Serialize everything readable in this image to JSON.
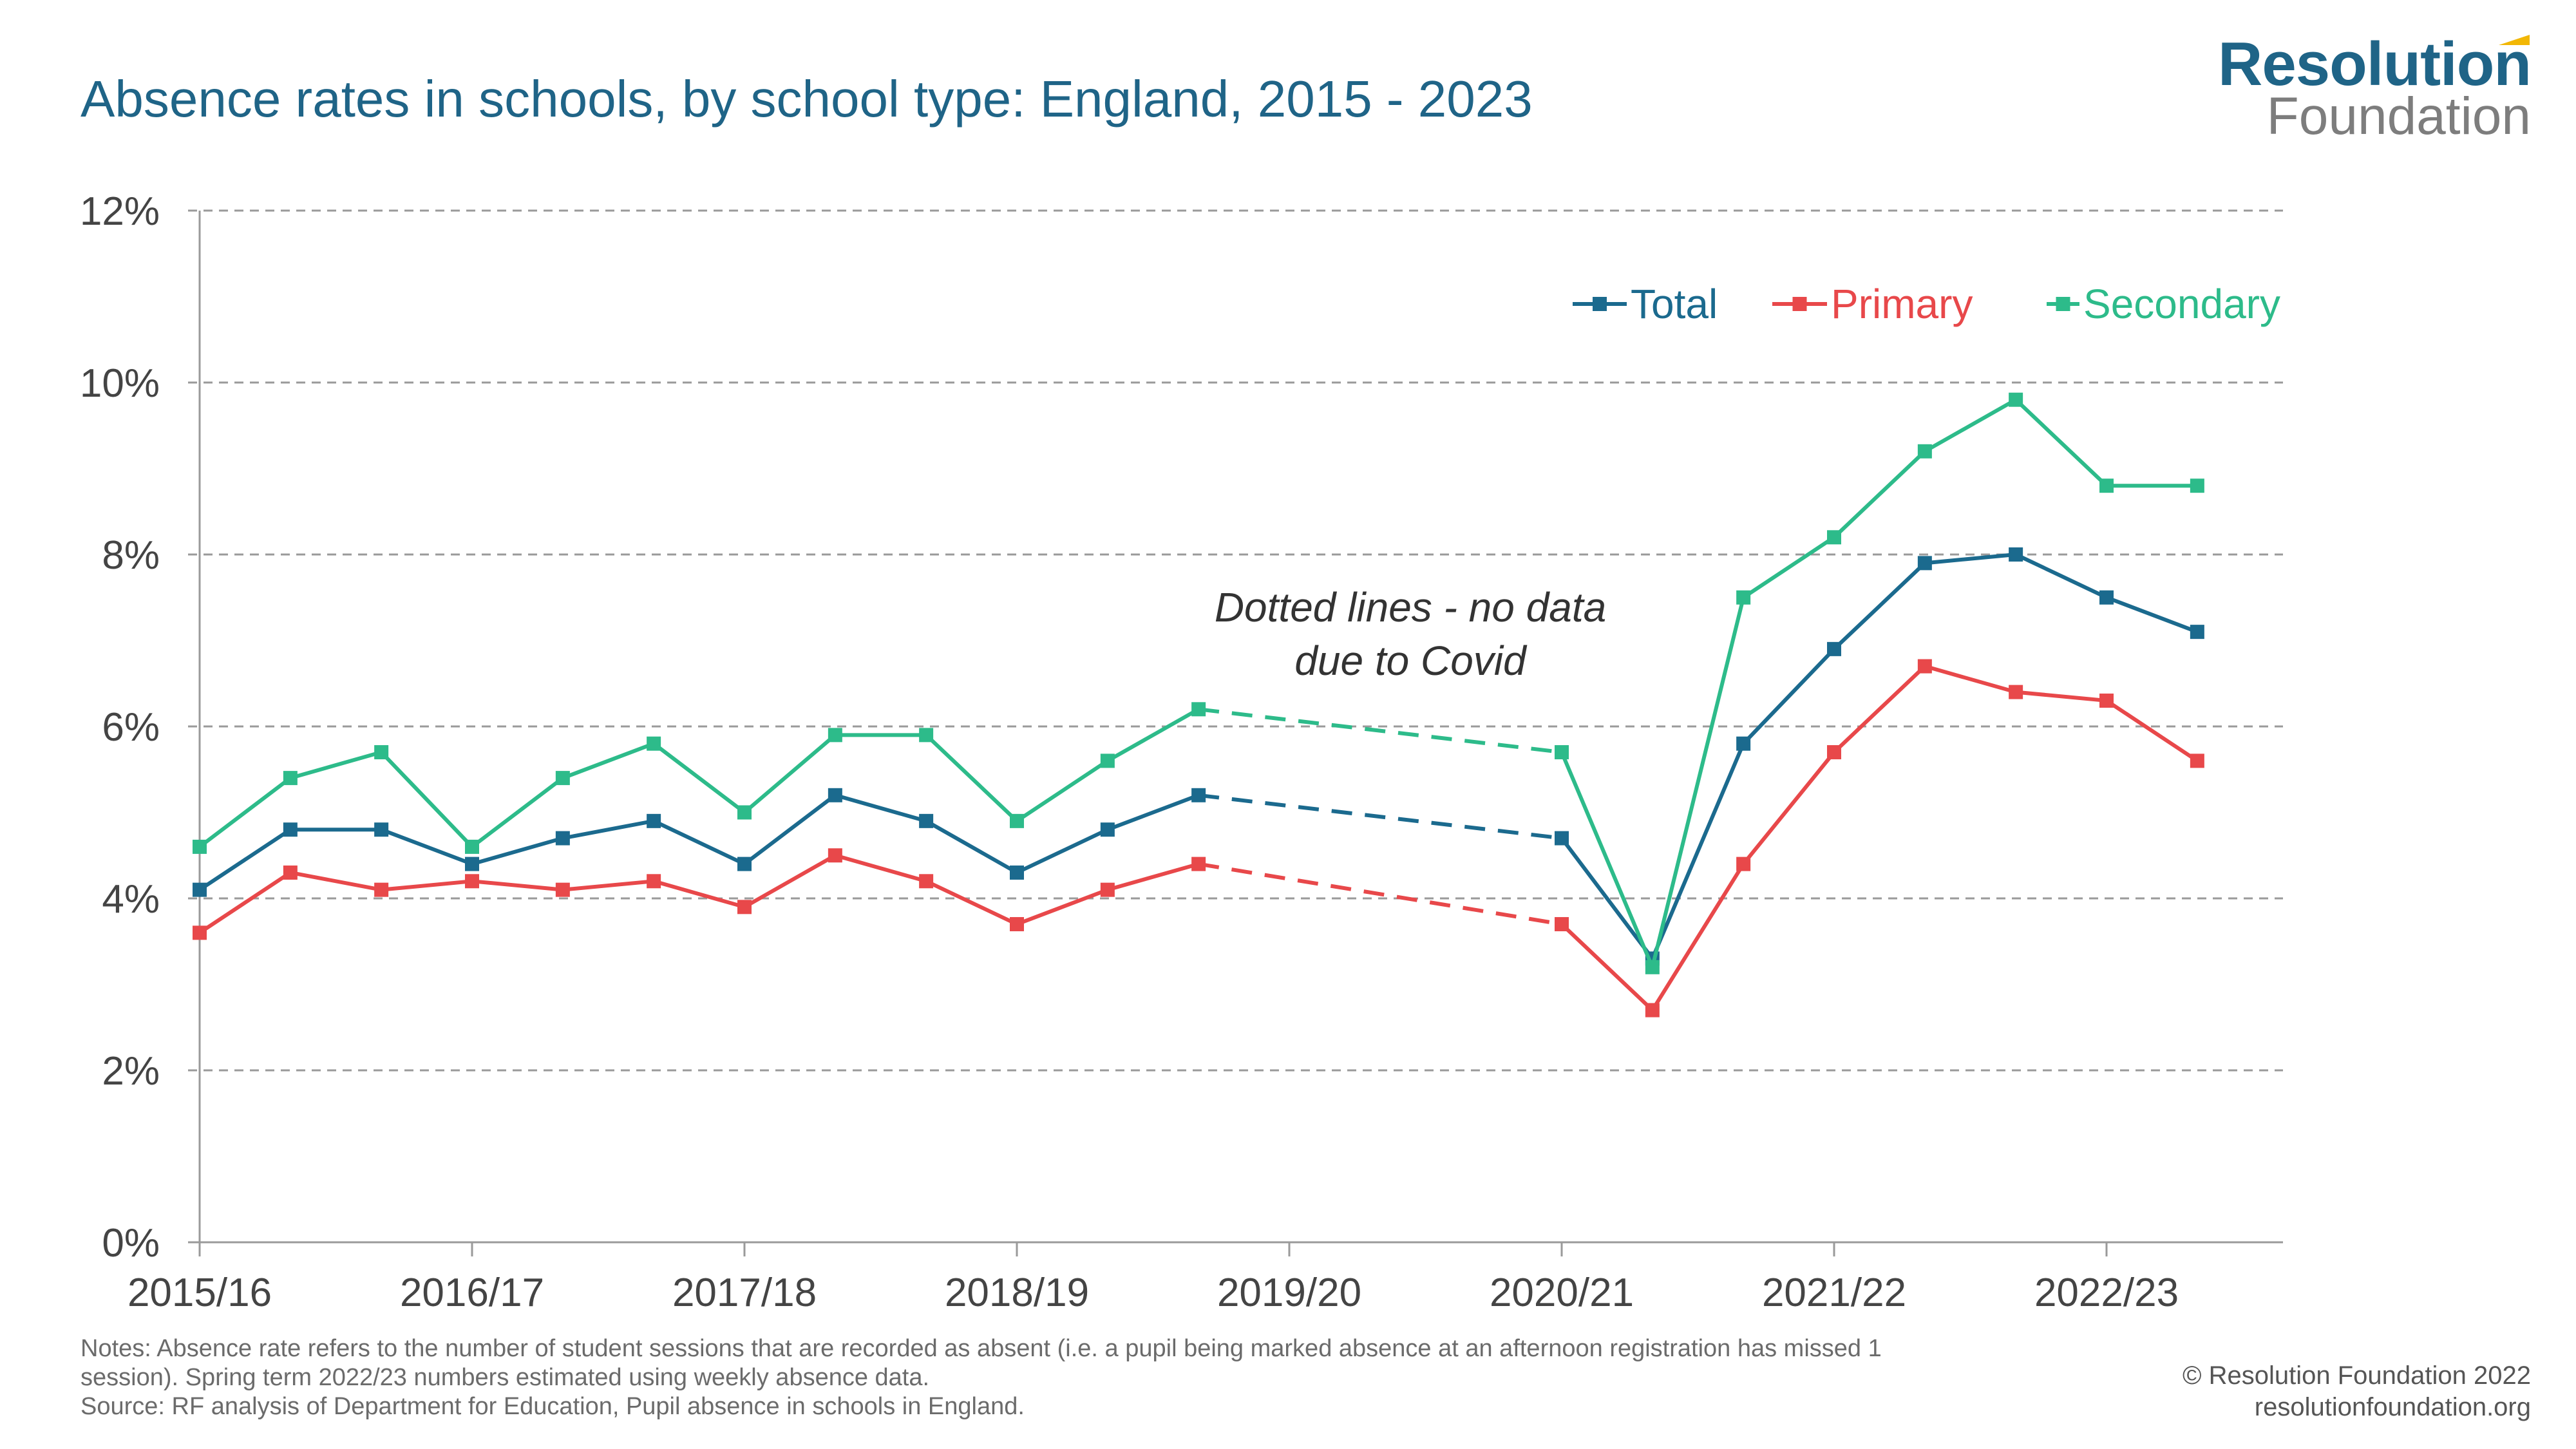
{
  "title": "Absence rates in schools, by school type: England, 2015 - 2023",
  "logo": {
    "main": "Resolution",
    "sub": "Foundation"
  },
  "annotation": {
    "line1": "Dotted lines - no data",
    "line2": "due to Covid"
  },
  "notes": {
    "line1": "Notes: Absence rate refers to the number of student sessions that are recorded as absent (i.e. a pupil being marked absence at an afternoon registration has missed 1",
    "line2": "session). Spring term 2022/23 numbers estimated using weekly absence data.",
    "line3": "Source: RF analysis of Department for Education, Pupil absence in schools in England."
  },
  "footer": {
    "copyright": "© Resolution Foundation 2022",
    "url": "resolutionfoundation.org"
  },
  "colors": {
    "total": "#1b6a8e",
    "primary": "#e8484a",
    "secondary": "#2dbb8a",
    "title": "#1f6487",
    "grid": "#a0a0a0"
  },
  "chart_data": {
    "type": "line",
    "title": "Absence rates in schools, by school type: England, 2015 - 2023",
    "xlabel": "",
    "ylabel": "",
    "ylim": [
      0,
      12
    ],
    "y_ticks": [
      "0%",
      "2%",
      "4%",
      "6%",
      "8%",
      "10%",
      "12%"
    ],
    "x_tick_labels": [
      "2015/16",
      "2016/17",
      "2017/18",
      "2018/19",
      "2019/20",
      "2020/21",
      "2021/22",
      "2022/23"
    ],
    "x": [
      0,
      0.333,
      0.667,
      1,
      1.333,
      1.667,
      2,
      2.333,
      2.667,
      3,
      3.333,
      3.667,
      5,
      5.333,
      5.667,
      6,
      6.333,
      6.667,
      7,
      7.333
    ],
    "dashed_segment": {
      "from_index": 11,
      "to_index": 12
    },
    "grid": true,
    "legend_position": "top-right",
    "series": [
      {
        "name": "Total",
        "color": "#1b6a8e",
        "values": [
          4.1,
          4.8,
          4.8,
          4.4,
          4.7,
          4.9,
          4.4,
          5.2,
          4.9,
          4.3,
          4.8,
          5.2,
          4.7,
          3.3,
          5.8,
          6.9,
          7.9,
          8.0,
          7.5,
          7.1
        ]
      },
      {
        "name": "Primary",
        "color": "#e8484a",
        "values": [
          3.6,
          4.3,
          4.1,
          4.2,
          4.1,
          4.2,
          3.9,
          4.5,
          4.2,
          3.7,
          4.1,
          4.4,
          3.7,
          2.7,
          4.4,
          5.7,
          6.7,
          6.4,
          6.3,
          5.6
        ]
      },
      {
        "name": "Secondary",
        "color": "#2dbb8a",
        "values": [
          4.6,
          5.4,
          5.7,
          4.6,
          5.4,
          5.8,
          5.0,
          5.9,
          5.9,
          4.9,
          5.6,
          6.2,
          5.7,
          3.2,
          7.5,
          8.2,
          9.2,
          9.8,
          8.8,
          8.8
        ]
      }
    ]
  }
}
